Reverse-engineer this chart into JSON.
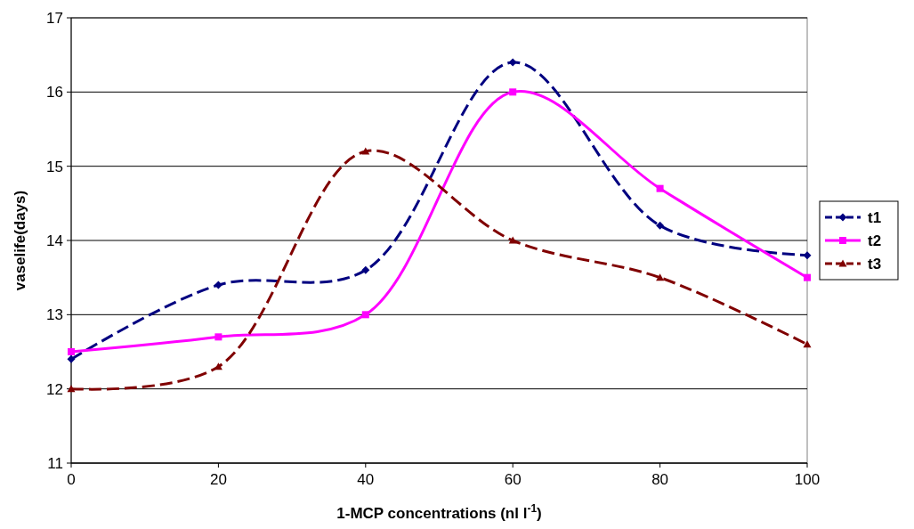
{
  "chart_data": {
    "type": "line",
    "xlabel": "1-MCP concentrations (nl l$^{-1}$)",
    "ylabel": "vaselife(days)",
    "x": [
      0,
      20,
      40,
      60,
      80,
      100
    ],
    "series": [
      {
        "name": "t1",
        "color": "#000080",
        "values": [
          12.4,
          13.4,
          13.6,
          16.4,
          14.2,
          13.8
        ],
        "marker": "diamond",
        "line_style": "dashed"
      },
      {
        "name": "t2",
        "color": "#ff00ff",
        "values": [
          12.5,
          12.7,
          13.0,
          16.0,
          14.7,
          13.5
        ],
        "marker": "square",
        "line_style": "solid"
      },
      {
        "name": "t3",
        "color": "#800000",
        "values": [
          12.0,
          12.3,
          15.2,
          14.0,
          13.5,
          12.6
        ],
        "marker": "triangle",
        "line_style": "dashed"
      }
    ],
    "xlim": [
      0,
      100
    ],
    "xticks": [
      0,
      20,
      40,
      60,
      80,
      100
    ],
    "ylim": [
      11,
      17
    ],
    "yticks": [
      11,
      12,
      13,
      14,
      15,
      16,
      17
    ],
    "grid": "y",
    "legend": "right"
  }
}
